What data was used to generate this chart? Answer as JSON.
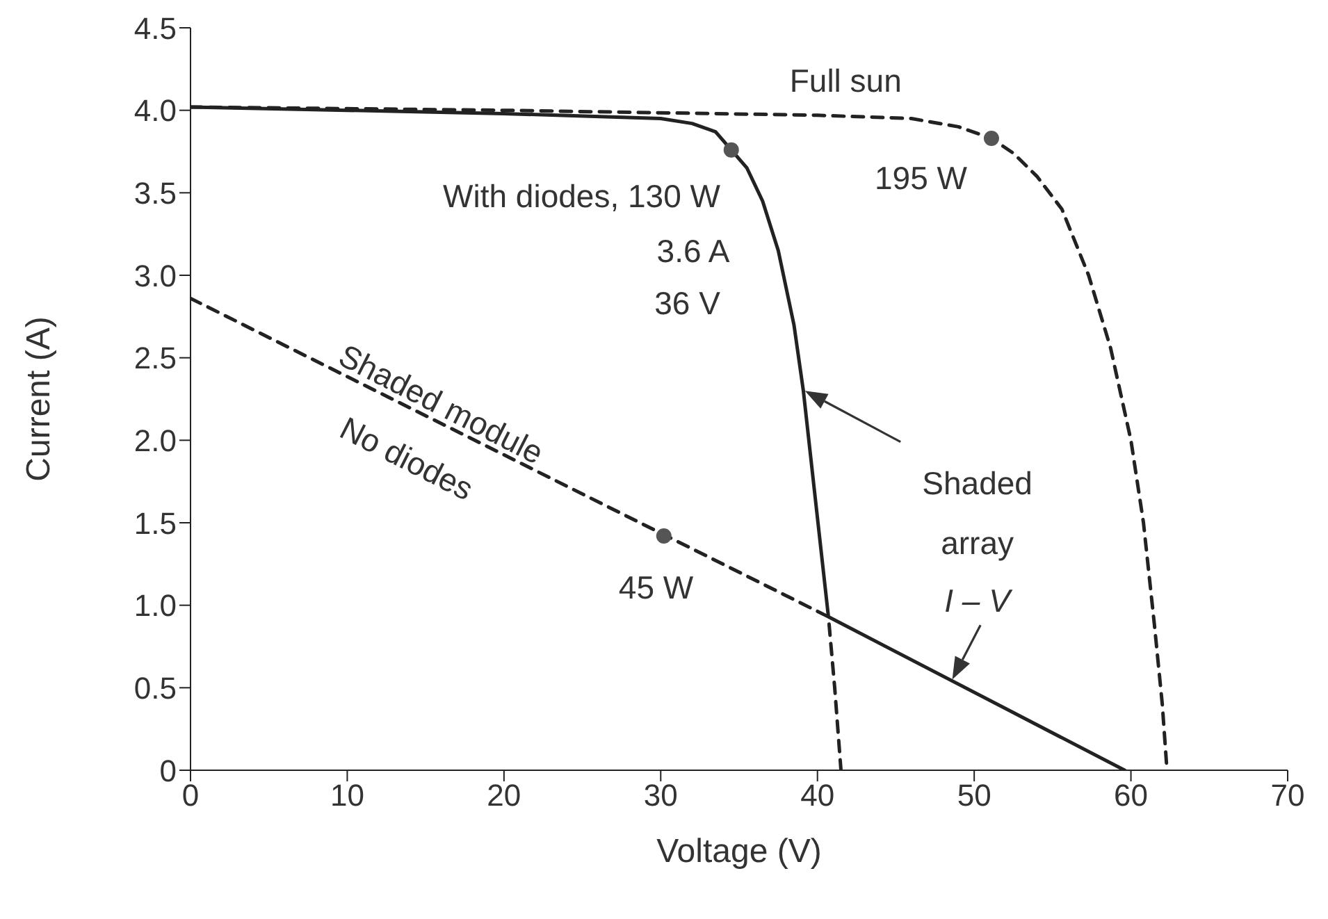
{
  "chart_data": {
    "type": "line",
    "xlabel": "Voltage (V)",
    "ylabel": "Current (A)",
    "xlim": [
      0,
      70
    ],
    "xticks": [
      0,
      10,
      20,
      30,
      40,
      50,
      60,
      70
    ],
    "ylim": [
      0,
      4.5
    ],
    "yticks": [
      0,
      0.5,
      {
        "value": 1,
        "label": "1.0"
      },
      1.5,
      {
        "value": 2,
        "label": "2.0"
      },
      2.5,
      {
        "value": 3,
        "label": "3.0"
      },
      3.5,
      {
        "value": 4,
        "label": "4.0"
      },
      4.5
    ],
    "grid": false,
    "marker": "none",
    "series": [
      {
        "color": "#222222",
        "line_style": "dashed",
        "x": [
          0,
          20,
          40,
          46,
          49,
          51.1,
          52.5,
          54,
          55.6,
          57.3,
          58.7,
          60,
          60.8,
          61.5,
          62,
          62.3
        ],
        "values": [
          4.02,
          4.0,
          3.97,
          3.95,
          3.9,
          3.83,
          3.74,
          3.6,
          3.4,
          3.0,
          2.56,
          2.0,
          1.5,
          0.88,
          0.4,
          0
        ]
      },
      {
        "color": "#222222",
        "line_style": "solid",
        "x": [
          0,
          10,
          20,
          30,
          32,
          33.5,
          34.5,
          35.5,
          36.5,
          37.5,
          38.5,
          39.1,
          39.8,
          40.7,
          59.6
        ],
        "values": [
          4.02,
          4.0,
          3.98,
          3.95,
          3.92,
          3.87,
          3.76,
          3.65,
          3.45,
          3.15,
          2.7,
          2.3,
          1.7,
          0.93,
          0
        ]
      },
      {
        "color": "#222222",
        "line_style": "dashed",
        "x": [
          0,
          40.7,
          41.1,
          41.5
        ],
        "values": [
          2.86,
          0.93,
          0.5,
          0
        ]
      },
      {
        "type": "scatter",
        "color": "#555555",
        "marker": "circle",
        "x": [
          51.1,
          34.5,
          30.2
        ],
        "values": [
          3.83,
          3.76,
          1.42
        ]
      }
    ],
    "annotations": [
      "Full sun",
      "195 W",
      "With diodes, 130 W",
      "3.6 A",
      "36 V",
      "Shaded module",
      "No diodes",
      "45 W",
      "Shaded",
      "array",
      "I – V"
    ]
  }
}
